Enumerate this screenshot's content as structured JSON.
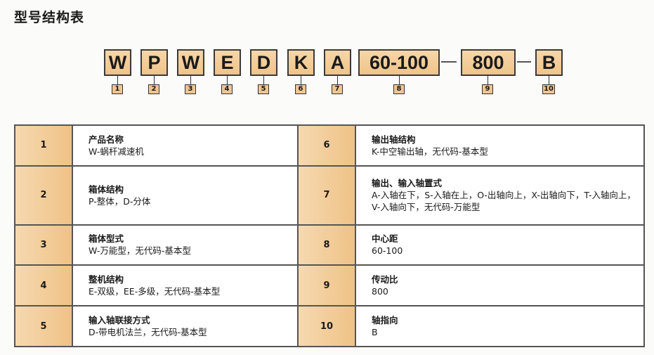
{
  "title": "型号结构表",
  "code": [
    {
      "text": "W",
      "num": "1"
    },
    {
      "text": "P",
      "num": "2"
    },
    {
      "text": "W",
      "num": "3"
    },
    {
      "text": "E",
      "num": "4"
    },
    {
      "text": "D",
      "num": "5"
    },
    {
      "text": "K",
      "num": "6"
    },
    {
      "text": "A",
      "num": "7"
    },
    {
      "text": "60-100",
      "num": "8"
    },
    {
      "text": "800",
      "num": "9"
    },
    {
      "text": "B",
      "num": "10"
    }
  ],
  "rows": [
    {
      "left": {
        "num": "1",
        "name": "产品名称",
        "desc": "W-蜗杆减速机"
      },
      "right": {
        "num": "6",
        "name": "输出轴结构",
        "desc": "K-中空输出轴，无代码-基本型"
      }
    },
    {
      "left": {
        "num": "2",
        "name": "箱体结构",
        "desc": "P-整体，D-分体"
      },
      "right": {
        "num": "7",
        "name": "输出、输入轴置式",
        "desc": "A-入轴在下，S-入轴在上，O-出轴向上，X-出轴向下，T-入轴向上，V-入轴向下，无代码-万能型"
      }
    },
    {
      "left": {
        "num": "3",
        "name": "箱体型式",
        "desc": "W-万能型，无代码-基本型"
      },
      "right": {
        "num": "8",
        "name": "中心距",
        "desc": "60-100"
      }
    },
    {
      "left": {
        "num": "4",
        "name": "整机结构",
        "desc": "E-双级，EE-多级，无代码-基本型"
      },
      "right": {
        "num": "9",
        "name": "传动比",
        "desc": "800"
      }
    },
    {
      "left": {
        "num": "5",
        "name": "输入轴联接方式",
        "desc": "D-带电机法兰，无代码-基本型"
      },
      "right": {
        "num": "10",
        "name": "轴指向",
        "desc": "B"
      }
    }
  ]
}
